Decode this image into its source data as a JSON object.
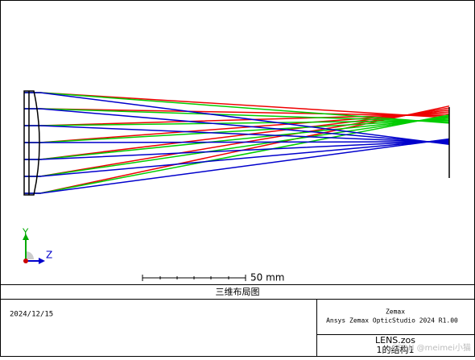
{
  "plot": {
    "scale_label": "50 mm",
    "axis_y": "Y",
    "axis_z": "Z"
  },
  "title": "三维布局图",
  "footer": {
    "date": "2024/12/15",
    "company": "Zemax",
    "product": "Ansys Zemax OpticStudio 2024 R1.00",
    "file": "LENS.zos",
    "config": "1的结构1"
  },
  "watermark": "CSDN @meimei小猫"
}
